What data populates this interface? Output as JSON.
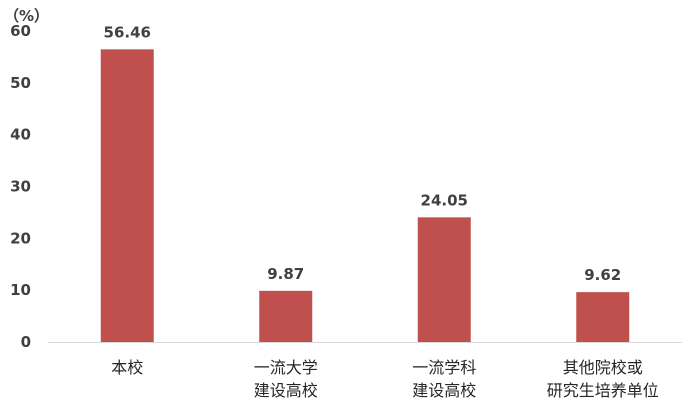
{
  "chart_data": {
    "type": "bar",
    "unit_label": "（%）",
    "categories": [
      [
        "本校"
      ],
      [
        "一流大学",
        "建设高校"
      ],
      [
        "一流学科",
        "建设高校"
      ],
      [
        "其他院校或",
        "研究生培养单位"
      ]
    ],
    "values": [
      56.46,
      9.87,
      24.05,
      9.62
    ],
    "data_labels": [
      "56.46",
      "9.87",
      "24.05",
      "9.62"
    ],
    "yticks": [
      "0",
      "10",
      "20",
      "30",
      "40",
      "50",
      "60"
    ],
    "ylim": [
      0,
      60
    ],
    "grid": false,
    "bar_color": "#C0504D",
    "axis_color": "#D9D9D9"
  }
}
